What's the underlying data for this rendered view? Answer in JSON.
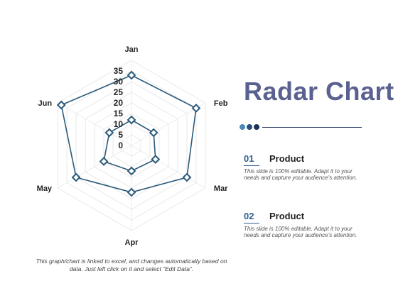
{
  "chart_data": {
    "type": "radar",
    "categories": [
      "Jan",
      "Feb",
      "Mar",
      "Apr",
      "May",
      "Jun"
    ],
    "r_ticks": [
      0,
      5,
      10,
      15,
      20,
      25,
      30,
      35
    ],
    "r_max": 40,
    "grid": true,
    "series": [
      {
        "values": [
          33,
          35,
          30,
          22,
          30,
          38
        ],
        "color": "#2c5a7a"
      },
      {
        "values": [
          12,
          12,
          13,
          12,
          15,
          12
        ],
        "color": "#2c5a7a"
      }
    ]
  },
  "title": "Radar Chart",
  "decor_dots": [
    "#4a8ab5",
    "#2c4f7a",
    "#1f2f55"
  ],
  "items": [
    {
      "num": "01",
      "title": "Product",
      "desc": "This slide is 100% editable. Adapt it to your needs and capture your audience's attention."
    },
    {
      "num": "02",
      "title": "Product",
      "desc": "This slide is 100% editable. Adapt it to your needs and capture your audience's attention."
    }
  ],
  "footnote": "This graph/chart is linked to excel, and changes automatically based on data. Just left click on it and select “Edit Data”."
}
